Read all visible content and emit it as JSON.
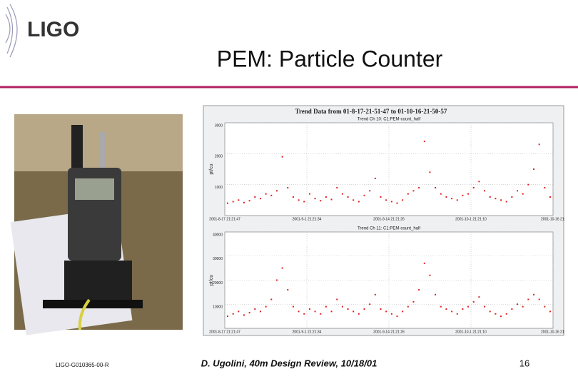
{
  "header": {
    "logo": "LIGO",
    "title": "PEM:  Particle Counter"
  },
  "figure": {
    "title": "Trend Data from 01-8-17-21-51-47 to 01-10-16-21-50-57",
    "plots": [
      {
        "subtitle": "Trend Ch 10: C1:PEM-count_half",
        "ylabel": "pt/cu",
        "ylim": [
          0,
          3000
        ],
        "yticks": [
          1000,
          2000,
          3000
        ],
        "xticks": [
          "2001-8-17 21:21:47",
          "2001-9-1 21:21:34",
          "2001-9-14 21:21:26",
          "2001-10-1 21:21:10",
          "2001-10-16 21:"
        ],
        "color": "#e02020",
        "values": [
          400,
          450,
          500,
          420,
          480,
          600,
          550,
          700,
          650,
          800,
          1900,
          900,
          600,
          500,
          450,
          700,
          550,
          480,
          600,
          520,
          900,
          700,
          600,
          500,
          450,
          650,
          800,
          1200,
          600,
          500,
          450,
          400,
          500,
          700,
          800,
          900,
          2400,
          1400,
          900,
          700,
          600,
          550,
          500,
          650,
          700,
          900,
          1100,
          800,
          600,
          550,
          500,
          450,
          600,
          800,
          700,
          1000,
          1500,
          2300,
          900,
          600
        ]
      },
      {
        "subtitle": "Trend Ch 11: C1:PEM-count_half",
        "ylabel": "pt/cu",
        "ylim": [
          0,
          40000
        ],
        "yticks": [
          10000,
          20000,
          30000,
          40000
        ],
        "xticks": [
          "2001-8-17 21:21:47",
          "2001-9-1 21:21:34",
          "2001-9-14 21:21:26",
          "2001-10-1 21:21:10",
          "2001-10-16 21:"
        ],
        "color": "#e02020",
        "values": [
          5000,
          6000,
          7000,
          5500,
          6500,
          8000,
          7000,
          9000,
          12000,
          20000,
          25000,
          16000,
          9000,
          7000,
          6000,
          8000,
          7000,
          6000,
          9000,
          7000,
          12000,
          9000,
          8000,
          7000,
          6000,
          8000,
          10000,
          14000,
          8000,
          7000,
          6000,
          5000,
          7000,
          9000,
          11000,
          16000,
          27000,
          22000,
          14000,
          9000,
          8000,
          7000,
          6000,
          8000,
          9000,
          11000,
          13000,
          9000,
          7000,
          6000,
          5000,
          6000,
          8000,
          10000,
          9000,
          12000,
          14000,
          12000,
          9000,
          7000
        ]
      }
    ]
  },
  "footer": {
    "doc_id": "LIGO-G010365-00-R",
    "citation": "D. Ugolini, 40m Design Review, 10/18/01",
    "page": "16"
  }
}
